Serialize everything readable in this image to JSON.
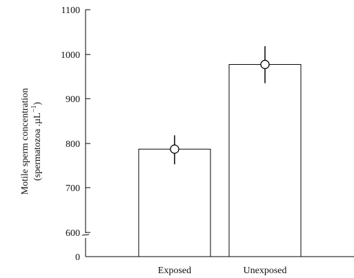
{
  "chart_data": {
    "type": "bar",
    "categories": [
      "Exposed",
      "Unexposed"
    ],
    "values": [
      787,
      977
    ],
    "error_low": [
      753,
      935
    ],
    "error_high": [
      818,
      1018
    ],
    "ylabel_line1": "Motile sperm concentration",
    "ylabel_line2": "(spermatozoa .µL",
    "ylabel_sup": "−1",
    "ylabel_close": ")",
    "ylim": [
      600,
      1100
    ],
    "yticks": [
      "1100",
      "1000",
      "900",
      "800",
      "700",
      "600",
      "0"
    ],
    "axis_break": true,
    "bar_color": "#ffffff",
    "marker": "open-circle"
  }
}
